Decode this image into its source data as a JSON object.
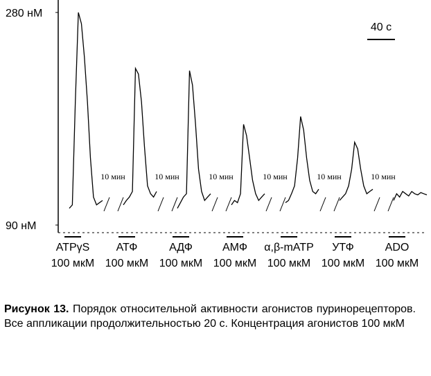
{
  "chart_data": {
    "type": "line",
    "ylim": [
      90,
      280
    ],
    "yticks": [
      {
        "value": 280,
        "label": "280 нМ"
      },
      {
        "value": 90,
        "label": "90 нМ"
      }
    ],
    "color": "#000000",
    "scale_bar_label": "40 с",
    "gap_labels": [
      "10 мин",
      "10 мин",
      "10 мин",
      "10 мин",
      "10 мин",
      "10 мин"
    ],
    "dose_labels": [
      "100 мкМ",
      "100 мкМ",
      "100 мкМ",
      "100 мкМ",
      "100 мкМ",
      "100 мкМ",
      "100 мкМ"
    ],
    "series": [
      {
        "name": "ATPγS",
        "values": [
          105,
          108,
          200,
          280,
          270,
          240,
          200,
          150,
          115,
          108,
          110,
          112
        ]
      },
      {
        "name": "АТФ",
        "values": [
          108,
          112,
          115,
          120,
          230,
          225,
          200,
          160,
          125,
          118,
          115,
          120
        ]
      },
      {
        "name": "АДФ",
        "values": [
          105,
          110,
          115,
          118,
          228,
          215,
          180,
          140,
          120,
          112,
          115,
          118
        ]
      },
      {
        "name": "АМФ",
        "values": [
          108,
          112,
          110,
          118,
          180,
          170,
          150,
          130,
          118,
          112,
          115,
          118
        ]
      },
      {
        "name": "α,β-mATP",
        "values": [
          110,
          112,
          118,
          125,
          150,
          187,
          175,
          150,
          130,
          120,
          118,
          122
        ]
      },
      {
        "name": "УТФ",
        "values": [
          112,
          115,
          118,
          125,
          140,
          164,
          158,
          140,
          125,
          118,
          120,
          122
        ]
      },
      {
        "name": "ADO",
        "values": [
          112,
          118,
          115,
          120,
          118,
          116,
          120,
          118,
          117,
          119,
          118,
          117
        ]
      }
    ]
  },
  "caption": {
    "label": "Рисунок 13.",
    "text": "Порядок относительной активности агонистов пуринорецепторов. Все аппликации продолжительностью 20 с. Концентрация агонистов 100 мкМ"
  }
}
